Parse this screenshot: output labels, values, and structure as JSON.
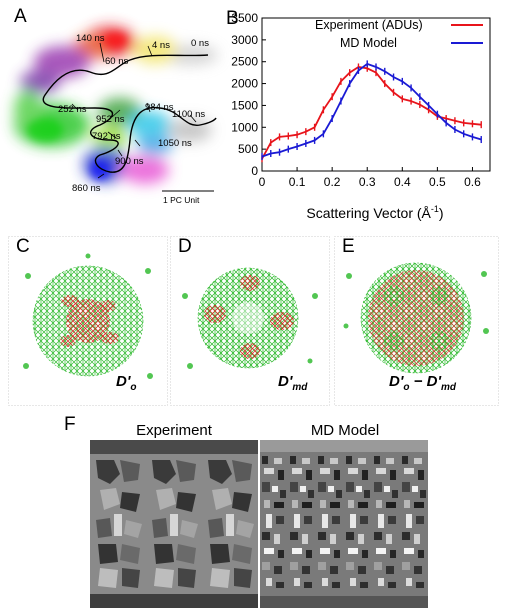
{
  "panel_a": {
    "label": "A",
    "time_labels": [
      "140 ns",
      "4 ns",
      "0 ns",
      "60 ns",
      "252 ns",
      "984 ns",
      "952 ns",
      "1100 ns",
      "792 ns",
      "1050 ns",
      "900 ns",
      "860 ns"
    ],
    "scale_bar_label": "1 PC Unit"
  },
  "panel_b": {
    "label": "B"
  },
  "chart_data": {
    "type": "line",
    "title": "",
    "xlabel": "Scattering Vector (Å",
    "xlabel_sup": "-1",
    "xlabel_close": ")",
    "ylabel": "",
    "xlim": [
      0,
      0.65
    ],
    "ylim": [
      0,
      3500
    ],
    "x_ticks": [
      "0",
      "0.1",
      "0.2",
      "0.3",
      "0.4",
      "0.5",
      "0.6"
    ],
    "y_ticks": [
      "0",
      "500",
      "1000",
      "1500",
      "2000",
      "2500",
      "3000",
      "3500"
    ],
    "legend_position": "top-right",
    "series": [
      {
        "name": "Experiment (ADUs)",
        "color": "#e8141b",
        "x": [
          0,
          0.025,
          0.05,
          0.075,
          0.1,
          0.125,
          0.15,
          0.175,
          0.2,
          0.225,
          0.25,
          0.275,
          0.3,
          0.325,
          0.35,
          0.375,
          0.4,
          0.425,
          0.45,
          0.475,
          0.5,
          0.525,
          0.55,
          0.575,
          0.6,
          0.625
        ],
        "values": [
          280,
          650,
          780,
          800,
          830,
          900,
          1000,
          1400,
          1700,
          2050,
          2250,
          2380,
          2350,
          2250,
          2000,
          1800,
          1650,
          1600,
          1520,
          1400,
          1250,
          1200,
          1150,
          1100,
          1080,
          1060
        ]
      },
      {
        "name": "MD Model",
        "color": "#1a1ad4",
        "x": [
          0,
          0.025,
          0.05,
          0.075,
          0.1,
          0.125,
          0.15,
          0.175,
          0.2,
          0.225,
          0.25,
          0.275,
          0.3,
          0.325,
          0.35,
          0.375,
          0.4,
          0.425,
          0.45,
          0.475,
          0.5,
          0.525,
          0.55,
          0.575,
          0.6,
          0.625
        ],
        "values": [
          330,
          400,
          430,
          500,
          560,
          630,
          700,
          850,
          1200,
          1600,
          2000,
          2300,
          2450,
          2380,
          2280,
          2150,
          2050,
          1900,
          1700,
          1500,
          1300,
          1100,
          950,
          850,
          780,
          720
        ]
      }
    ]
  },
  "panel_c": {
    "label": "C",
    "annotation": "D'",
    "annotation_sub": "o"
  },
  "panel_d": {
    "label": "D",
    "annotation": "D'",
    "annotation_sub": "md"
  },
  "panel_e": {
    "label": "E",
    "annotation_a": "D'",
    "annotation_a_sub": "o",
    "annotation_minus": " − ",
    "annotation_b": "D'",
    "annotation_b_sub": "md"
  },
  "panel_f": {
    "label": "F",
    "left_title": "Experiment",
    "right_title": "MD Model"
  }
}
